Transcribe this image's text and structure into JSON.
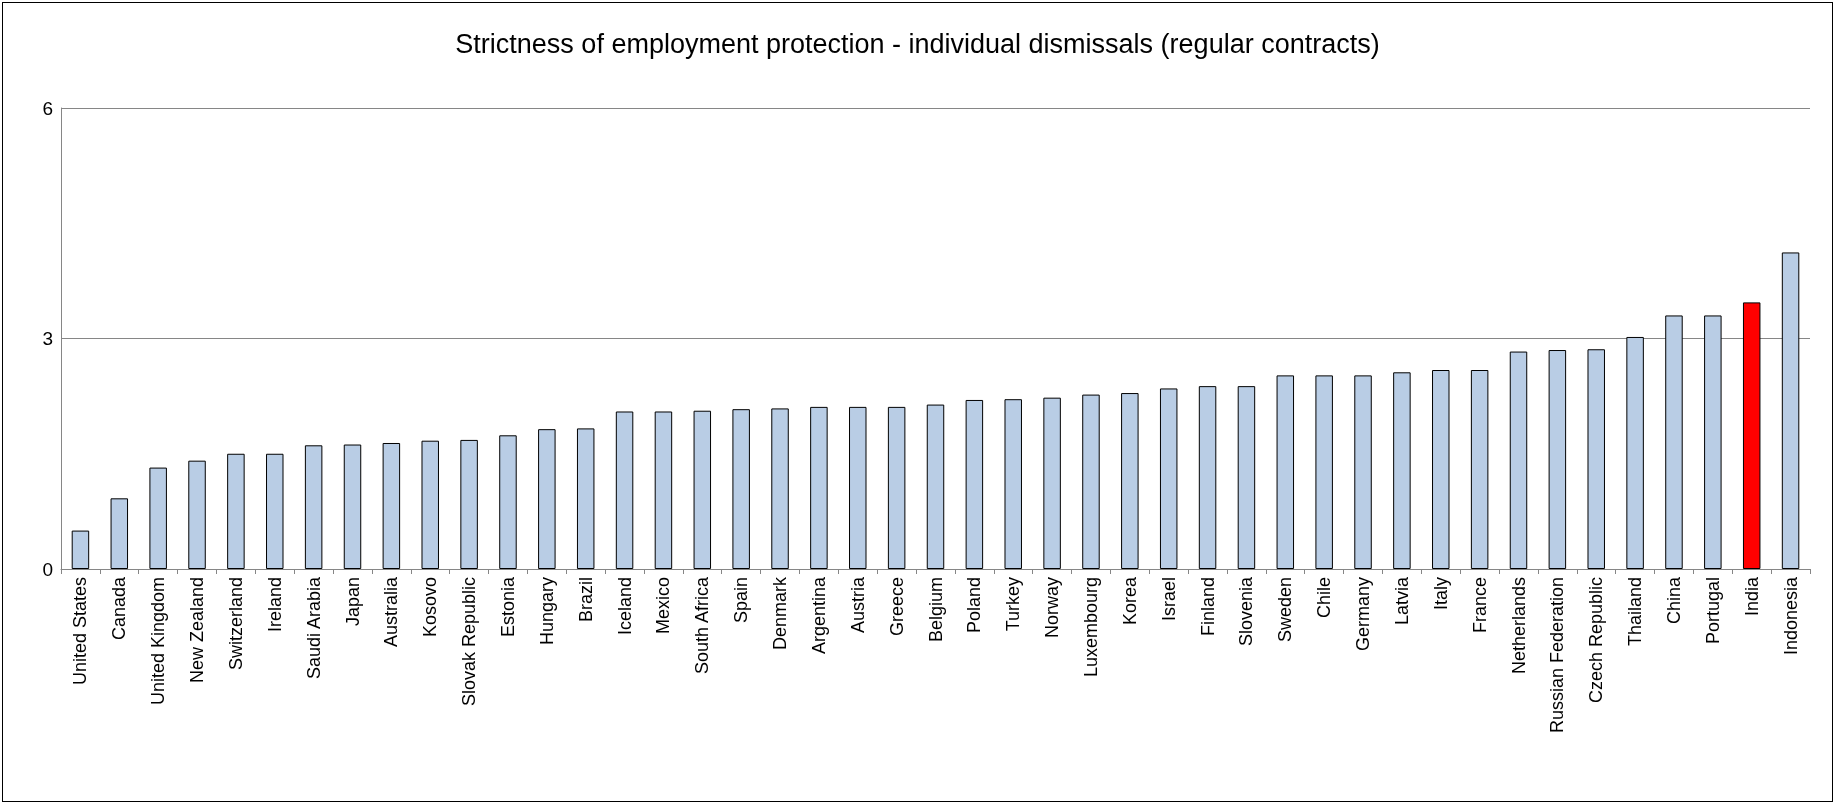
{
  "chart_data": {
    "type": "bar",
    "title": "Strictness of employment protection - individual dismissals (regular contracts)",
    "categories": [
      "United States",
      "Canada",
      "United Kingdom",
      "New Zealand",
      "Switzerland",
      "Ireland",
      "Saudi Arabia",
      "Japan",
      "Australia",
      "Kosovo",
      "Slovak Republic",
      "Estonia",
      "Hungary",
      "Brazil",
      "Iceland",
      "Mexico",
      "South Africa",
      "Spain",
      "Denmark",
      "Argentina",
      "Austria",
      "Greece",
      "Belgium",
      "Poland",
      "Turkey",
      "Norway",
      "Luxembourg",
      "Korea",
      "Israel",
      "Finland",
      "Slovenia",
      "Sweden",
      "Chile",
      "Germany",
      "Latvia",
      "Italy",
      "France",
      "Netherlands",
      "Russian Federation",
      "Czech Republic",
      "Thailand",
      "China",
      "Portugal",
      "India",
      "Indonesia"
    ],
    "values": [
      0.5,
      0.92,
      1.32,
      1.41,
      1.5,
      1.5,
      1.61,
      1.62,
      1.64,
      1.67,
      1.68,
      1.74,
      1.82,
      1.83,
      2.05,
      2.05,
      2.06,
      2.08,
      2.09,
      2.11,
      2.11,
      2.11,
      2.14,
      2.2,
      2.21,
      2.23,
      2.27,
      2.29,
      2.35,
      2.38,
      2.38,
      2.52,
      2.52,
      2.52,
      2.56,
      2.59,
      2.59,
      2.83,
      2.85,
      2.86,
      3.02,
      3.3,
      3.3,
      3.47,
      4.12
    ],
    "colors": [
      "#b9cde5",
      "#b9cde5",
      "#b9cde5",
      "#b9cde5",
      "#b9cde5",
      "#b9cde5",
      "#b9cde5",
      "#b9cde5",
      "#b9cde5",
      "#b9cde5",
      "#b9cde5",
      "#b9cde5",
      "#b9cde5",
      "#b9cde5",
      "#b9cde5",
      "#b9cde5",
      "#b9cde5",
      "#b9cde5",
      "#b9cde5",
      "#b9cde5",
      "#b9cde5",
      "#b9cde5",
      "#b9cde5",
      "#b9cde5",
      "#b9cde5",
      "#b9cde5",
      "#b9cde5",
      "#b9cde5",
      "#b9cde5",
      "#b9cde5",
      "#b9cde5",
      "#b9cde5",
      "#b9cde5",
      "#b9cde5",
      "#b9cde5",
      "#b9cde5",
      "#b9cde5",
      "#b9cde5",
      "#b9cde5",
      "#b9cde5",
      "#b9cde5",
      "#b9cde5",
      "#b9cde5",
      "#ff0000",
      "#b9cde5"
    ],
    "ylim": [
      0,
      6
    ],
    "yticks": [
      0,
      3,
      6
    ],
    "grid": "y"
  }
}
